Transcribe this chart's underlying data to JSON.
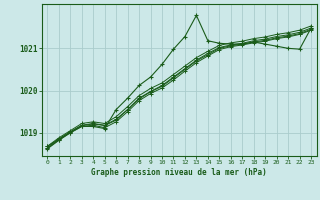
{
  "title": "Graphe pression niveau de la mer (hPa)",
  "bg_color": "#cce8e8",
  "grid_color": "#aacccc",
  "line_color": "#1a5c1a",
  "xlim": [
    -0.5,
    23.5
  ],
  "ylim": [
    1018.45,
    1022.05
  ],
  "yticks": [
    1019,
    1020,
    1021
  ],
  "xticks": [
    0,
    1,
    2,
    3,
    4,
    5,
    6,
    7,
    8,
    9,
    10,
    11,
    12,
    13,
    14,
    15,
    16,
    17,
    18,
    19,
    20,
    21,
    22,
    23
  ],
  "series": [
    [
      1018.68,
      1018.85,
      1019.02,
      1019.18,
      1019.22,
      1019.18,
      1019.32,
      1019.55,
      1019.82,
      1019.98,
      1020.12,
      1020.32,
      1020.52,
      1020.72,
      1020.88,
      1021.02,
      1021.08,
      1021.12,
      1021.18,
      1021.22,
      1021.28,
      1021.32,
      1021.38,
      1021.48
    ],
    [
      1018.68,
      1018.88,
      1019.05,
      1019.22,
      1019.26,
      1019.22,
      1019.38,
      1019.62,
      1019.88,
      1020.05,
      1020.18,
      1020.38,
      1020.58,
      1020.78,
      1020.93,
      1021.07,
      1021.13,
      1021.17,
      1021.23,
      1021.27,
      1021.33,
      1021.37,
      1021.43,
      1021.53
    ],
    [
      1018.65,
      1018.85,
      1019.02,
      1019.17,
      1019.21,
      1019.17,
      1019.3,
      1019.55,
      1019.8,
      1019.97,
      1020.1,
      1020.3,
      1020.5,
      1020.7,
      1020.85,
      1021.0,
      1021.06,
      1021.1,
      1021.15,
      1021.19,
      1021.25,
      1021.29,
      1021.35,
      1021.45
    ],
    [
      1018.63,
      1018.83,
      1019.0,
      1019.15,
      1019.18,
      1019.12,
      1019.26,
      1019.5,
      1019.76,
      1019.93,
      1020.06,
      1020.25,
      1020.46,
      1020.66,
      1020.82,
      1020.97,
      1021.04,
      1021.08,
      1021.13,
      1021.17,
      1021.23,
      1021.27,
      1021.33,
      1021.43
    ]
  ],
  "peak_series": [
    1018.62,
    1018.82,
    1019.0,
    1019.15,
    1019.15,
    1019.1,
    1019.55,
    1019.82,
    1020.12,
    1020.32,
    1020.62,
    1020.98,
    1021.28,
    1021.78,
    1021.18,
    1021.12,
    1021.1,
    1021.1,
    1021.15,
    1021.1,
    1021.05,
    1021.0,
    1020.98,
    1021.48
  ]
}
